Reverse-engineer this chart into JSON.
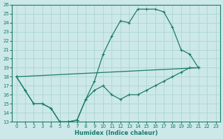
{
  "xlabel": "Humidex (Indice chaleur)",
  "xlim": [
    -0.5,
    23.5
  ],
  "ylim": [
    13,
    26
  ],
  "xticks": [
    0,
    1,
    2,
    3,
    4,
    5,
    6,
    7,
    8,
    9,
    10,
    11,
    12,
    13,
    14,
    15,
    16,
    17,
    18,
    19,
    20,
    21,
    22,
    23
  ],
  "yticks": [
    13,
    14,
    15,
    16,
    17,
    18,
    19,
    20,
    21,
    22,
    23,
    24,
    25,
    26
  ],
  "bg_color": "#cce8e8",
  "grid_color": "#b0d8d4",
  "line_color": "#1a7a6a",
  "curve1_x": [
    0,
    1,
    2,
    3,
    4,
    5,
    6,
    7,
    8,
    9,
    10,
    11,
    12,
    13,
    14,
    15,
    16,
    17,
    18,
    19,
    20,
    21
  ],
  "curve1_y": [
    18,
    16.5,
    15.0,
    15.0,
    14.5,
    13.0,
    13.0,
    13.2,
    15.5,
    17.5,
    20.5,
    22.5,
    24.2,
    24.0,
    25.5,
    25.5,
    25.5,
    25.2,
    23.5,
    21.0,
    20.5,
    19.0
  ],
  "curve2_x": [
    0,
    1,
    2,
    3,
    4,
    5,
    6,
    7,
    8,
    9,
    10,
    11,
    12,
    13,
    14,
    15,
    16,
    17,
    18,
    19,
    20,
    21
  ],
  "curve2_y": [
    18,
    16.5,
    15.0,
    15.0,
    14.5,
    13.0,
    13.0,
    13.2,
    15.5,
    16.5,
    17.0,
    16.0,
    15.5,
    16.0,
    16.0,
    16.5,
    17.0,
    17.5,
    18.0,
    18.5,
    19.0,
    19.0
  ],
  "curve3_x": [
    0,
    21
  ],
  "curve3_y": [
    18,
    19.0
  ]
}
